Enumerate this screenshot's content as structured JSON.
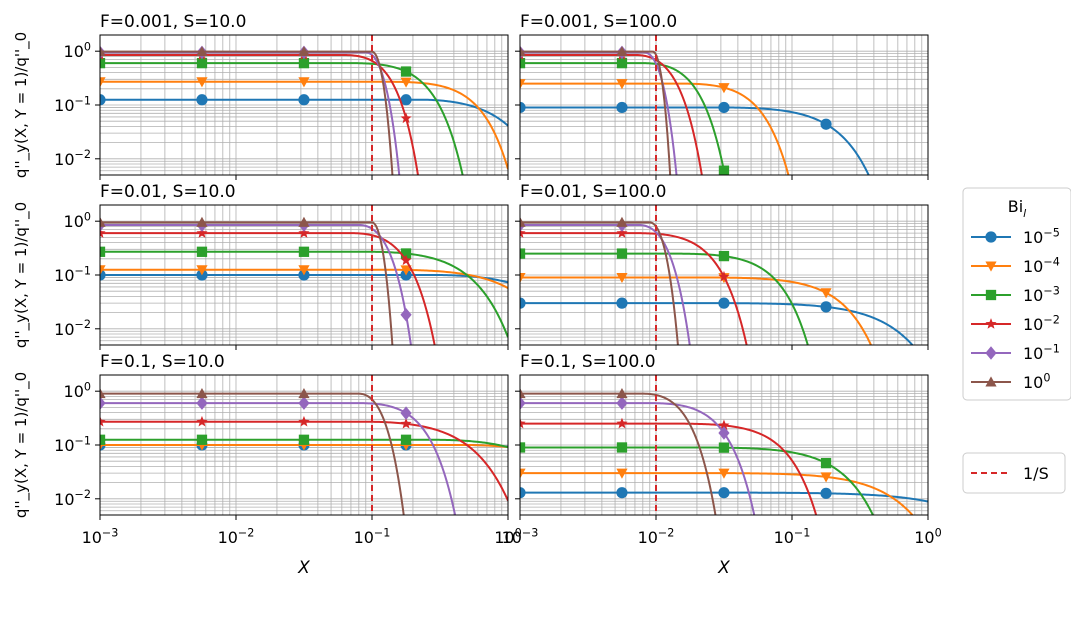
{
  "colors": {
    "grid": "#b0b0b0",
    "axes": "#000000",
    "ref_line": "#d62728"
  },
  "chart_data": {
    "type": "line",
    "xscale": "log",
    "yscale": "log",
    "grid": true,
    "xlim": [
      0.001,
      1
    ],
    "ylim": [
      0.005,
      2
    ],
    "xlabel": "X",
    "ylabel": "q''_y(X, Y = 1)/q''_0",
    "x_ticks": [
      {
        "value": 0.001,
        "base": "10",
        "exp": "−3"
      },
      {
        "value": 0.01,
        "base": "10",
        "exp": "−2"
      },
      {
        "value": 0.1,
        "base": "10",
        "exp": "−1"
      },
      {
        "value": 1,
        "base": "10",
        "exp": "0"
      }
    ],
    "y_ticks": [
      {
        "value": 0.01,
        "base": "10",
        "exp": "−2"
      },
      {
        "value": 0.1,
        "base": "10",
        "exp": "−1"
      },
      {
        "value": 1,
        "base": "10",
        "exp": "0"
      }
    ],
    "marker_x": [
      0.001,
      0.00562,
      0.0316,
      0.178
    ],
    "legend": {
      "title": "Bi",
      "title_sub": "l",
      "placement": "right",
      "entries": [
        {
          "base": "10",
          "exp": "−5",
          "color": "#1f77b4",
          "marker": "circle"
        },
        {
          "base": "10",
          "exp": "−4",
          "color": "#ff7f0e",
          "marker": "triangle-down"
        },
        {
          "base": "10",
          "exp": "−3",
          "color": "#2ca02c",
          "marker": "square"
        },
        {
          "base": "10",
          "exp": "−2",
          "color": "#d62728",
          "marker": "star"
        },
        {
          "base": "10",
          "exp": "−1",
          "color": "#9467bd",
          "marker": "diamond"
        },
        {
          "base": "10",
          "exp": "0",
          "color": "#8c564b",
          "marker": "triangle-up"
        }
      ],
      "ref_label": "1/S"
    },
    "panels": [
      {
        "title": "F=0.001, S=10.0",
        "ref_x": 0.1,
        "series": [
          {
            "bi": "1e-5",
            "level": 0.125,
            "x0": 0.25,
            "w": 0.7,
            "p": 1.5
          },
          {
            "bi": "1e-4",
            "level": 0.27,
            "x0": 0.13,
            "w": 0.45,
            "p": 2
          },
          {
            "bi": "1e-3",
            "level": 0.6,
            "x0": 0.07,
            "w": 0.18,
            "p": 2
          },
          {
            "bi": "1e-2",
            "level": 0.85,
            "x0": 0.06,
            "w": 0.075,
            "p": 2.2
          },
          {
            "bi": "1e-1",
            "level": 0.95,
            "x0": 0.09,
            "w": 0.03,
            "p": 2
          },
          {
            "bi": "1e0",
            "level": 0.98,
            "x0": 0.1,
            "w": 0.018,
            "p": 2
          }
        ]
      },
      {
        "title": "F=0.001, S=100.0",
        "ref_x": 0.01,
        "series": [
          {
            "bi": "1e-5",
            "level": 0.09,
            "x0": 0.03,
            "w": 0.18,
            "p": 1.7
          },
          {
            "bi": "1e-4",
            "level": 0.25,
            "x0": 0.015,
            "w": 0.04,
            "p": 2
          },
          {
            "bi": "1e-3",
            "level": 0.6,
            "x0": 0.008,
            "w": 0.011,
            "p": 2
          },
          {
            "bi": "1e-2",
            "level": 0.85,
            "x0": 0.007,
            "w": 0.0065,
            "p": 2
          },
          {
            "bi": "1e-1",
            "level": 0.95,
            "x0": 0.0082,
            "w": 0.0026,
            "p": 2
          },
          {
            "bi": "1e0",
            "level": 0.98,
            "x0": 0.0095,
            "w": 0.0014,
            "p": 2
          }
        ]
      },
      {
        "title": "F=0.01, S=10.0",
        "ref_x": 0.1,
        "series": [
          {
            "bi": "1e-5",
            "level": 0.1,
            "x0": 0.3,
            "w": 1.5,
            "p": 1.5
          },
          {
            "bi": "1e-4",
            "level": 0.125,
            "x0": 0.15,
            "w": 1.0,
            "p": 1.5
          },
          {
            "bi": "1e-3",
            "level": 0.27,
            "x0": 0.1,
            "w": 0.4,
            "p": 1.6
          },
          {
            "bi": "1e-2",
            "level": 0.6,
            "x0": 0.07,
            "w": 0.1,
            "p": 2
          },
          {
            "bi": "1e-1",
            "level": 0.85,
            "x0": 0.08,
            "w": 0.05,
            "p": 2
          },
          {
            "bi": "1e0",
            "level": 0.95,
            "x0": 0.1,
            "w": 0.018,
            "p": 2
          }
        ]
      },
      {
        "title": "F=0.01, S=100.0",
        "ref_x": 0.01,
        "series": [
          {
            "bi": "1e-5",
            "level": 0.03,
            "x0": 0.03,
            "w": 0.5,
            "p": 1.5
          },
          {
            "bi": "1e-4",
            "level": 0.09,
            "x0": 0.02,
            "w": 0.2,
            "p": 1.8
          },
          {
            "bi": "1e-3",
            "level": 0.25,
            "x0": 0.012,
            "w": 0.06,
            "p": 2
          },
          {
            "bi": "1e-2",
            "level": 0.6,
            "x0": 0.007,
            "w": 0.018,
            "p": 2
          },
          {
            "bi": "1e-1",
            "level": 0.85,
            "x0": 0.0075,
            "w": 0.0045,
            "p": 2
          },
          {
            "bi": "1e0",
            "level": 0.95,
            "x0": 0.009,
            "w": 0.0024,
            "p": 2
          }
        ]
      },
      {
        "title": "F=0.1, S=10.0",
        "ref_x": 0.1,
        "series": [
          {
            "bi": "1e-5",
            "level": 0.1,
            "x0": 0.5,
            "w": 3.0,
            "p": 1.5
          },
          {
            "bi": "1e-4",
            "level": 0.1,
            "x0": 0.5,
            "w": 2.5,
            "p": 1.5
          },
          {
            "bi": "1e-3",
            "level": 0.125,
            "x0": 0.3,
            "w": 1.5,
            "p": 1.5
          },
          {
            "bi": "1e-2",
            "level": 0.27,
            "x0": 0.1,
            "w": 0.4,
            "p": 1.5
          },
          {
            "bi": "1e-1",
            "level": 0.6,
            "x0": 0.08,
            "w": 0.15,
            "p": 2
          },
          {
            "bi": "1e0",
            "level": 0.9,
            "x0": 0.08,
            "w": 0.04,
            "p": 2
          }
        ]
      },
      {
        "title": "F=0.1, S=100.0",
        "ref_x": 0.01,
        "series": [
          {
            "bi": "1e-5",
            "level": 0.013,
            "x0": 0.05,
            "w": 2.0,
            "p": 1.3
          },
          {
            "bi": "1e-4",
            "level": 0.03,
            "x0": 0.03,
            "w": 0.5,
            "p": 1.5
          },
          {
            "bi": "1e-3",
            "level": 0.09,
            "x0": 0.02,
            "w": 0.2,
            "p": 1.7
          },
          {
            "bi": "1e-2",
            "level": 0.25,
            "x0": 0.012,
            "w": 0.07,
            "p": 2
          },
          {
            "bi": "1e-1",
            "level": 0.6,
            "x0": 0.009,
            "w": 0.02,
            "p": 2
          },
          {
            "bi": "1e0",
            "level": 0.9,
            "x0": 0.008,
            "w": 0.0085,
            "p": 2
          }
        ]
      }
    ]
  }
}
